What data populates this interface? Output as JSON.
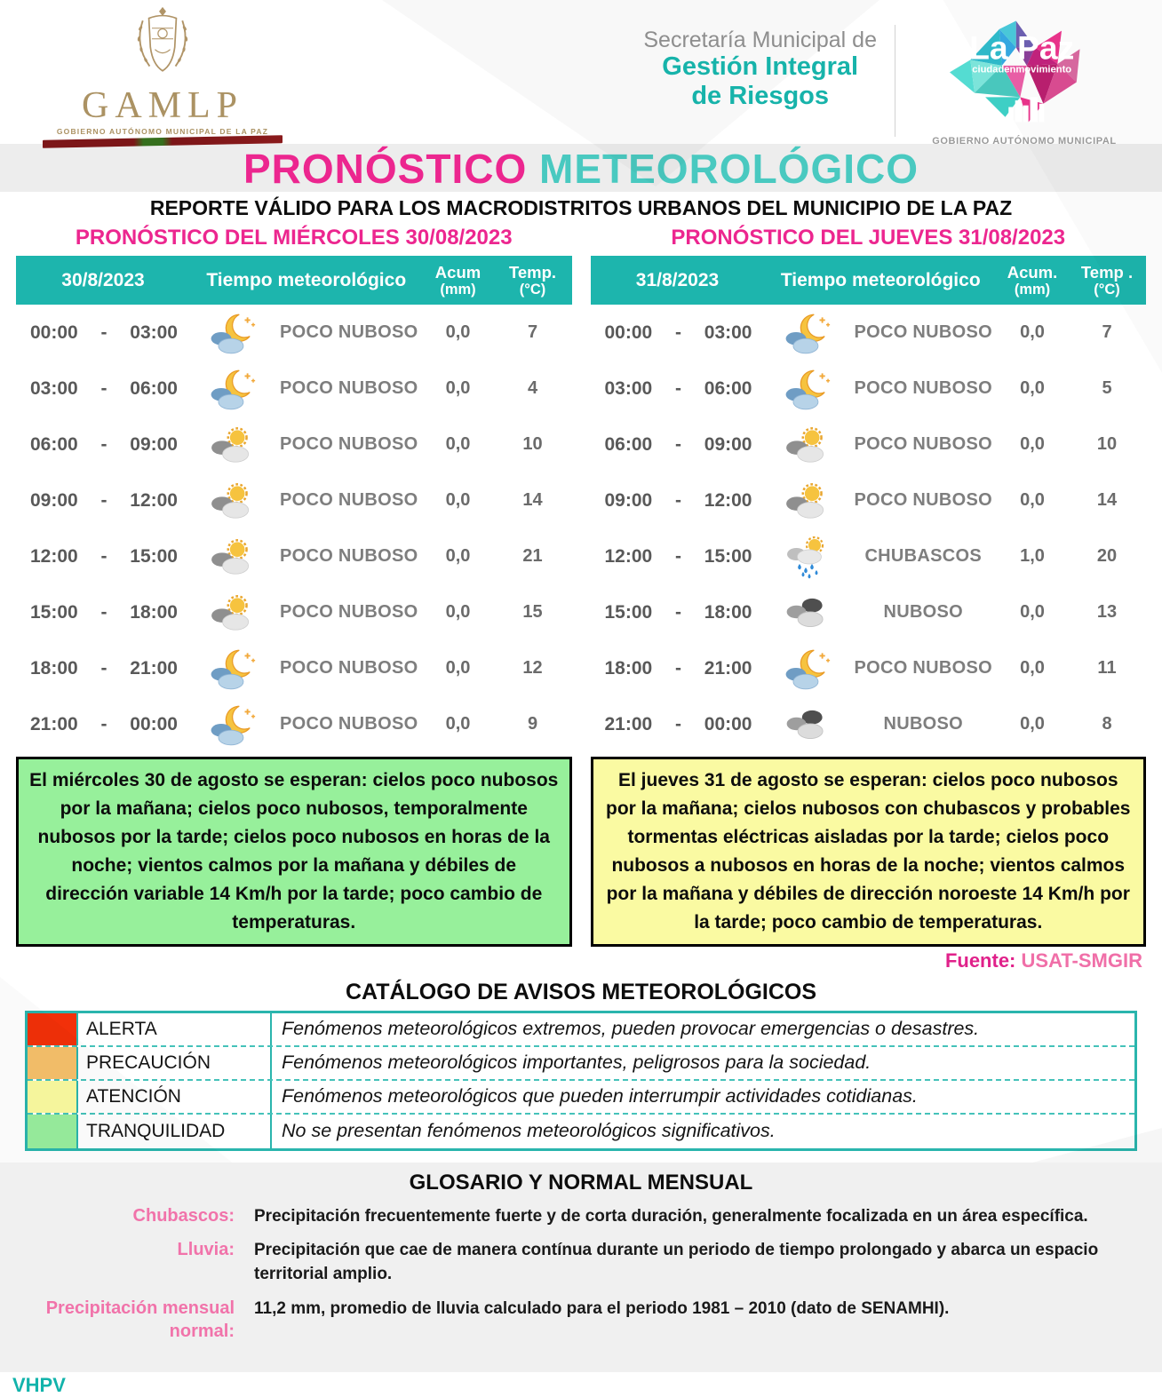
{
  "header": {
    "gamlp": {
      "acronym": "GAMLP",
      "subtitle": "GOBIERNO AUTÓNOMO MUNICIPAL DE LA PAZ"
    },
    "secretaria": {
      "line1": "Secretaría Municipal de",
      "line2": "Gestión Integral",
      "line3": "de Riesgos"
    },
    "lapaz": {
      "title": "La Paz",
      "subtitle": "ciudadenmovimiento",
      "footer": "GOBIERNO AUTÓNOMO MUNICIPAL"
    }
  },
  "title": {
    "part1": "PRONÓSTICO",
    "part2": "METEOROLÓGICO"
  },
  "subtitle": "REPORTE VÁLIDO PARA LOS MACRODISTRITOS URBANOS DEL MUNICIPIO DE LA PAZ",
  "colors": {
    "accent_pink": "#ec268f",
    "accent_teal": "#49c9c0",
    "table_header_teal": "#1db5ad",
    "catalog_border_teal": "#2ab5ad",
    "gold": "#ab9263",
    "summary_green": "#97f09b",
    "summary_yellow": "#fafaa2",
    "fuente_magenta": "#e0218a",
    "fuente_pink": "#f06fa8",
    "glossary_term_pink": "#f173aa",
    "initials_teal": "#12b3ab"
  },
  "forecasts": [
    {
      "section_title": "PRONÓSTICO DEL MIÉRCOLES 30/08/2023",
      "columns": {
        "date": "30/8/2023",
        "weather": "Tiempo meteorológico",
        "acum_line1": "Acum",
        "acum_line2": "(mm)",
        "temp_line1": "Temp.",
        "temp_line2": "(°C)"
      },
      "rows": [
        {
          "from": "00:00",
          "sep": "-",
          "to": "03:00",
          "icon": "moon-clouds",
          "condition": "POCO NUBOSO",
          "acum": "0,0",
          "temp": "7"
        },
        {
          "from": "03:00",
          "sep": "-",
          "to": "06:00",
          "icon": "moon-clouds",
          "condition": "POCO NUBOSO",
          "acum": "0,0",
          "temp": "4"
        },
        {
          "from": "06:00",
          "sep": "-",
          "to": "09:00",
          "icon": "sun-clouds",
          "condition": "POCO NUBOSO",
          "acum": "0,0",
          "temp": "10"
        },
        {
          "from": "09:00",
          "sep": "-",
          "to": "12:00",
          "icon": "sun-clouds",
          "condition": "POCO NUBOSO",
          "acum": "0,0",
          "temp": "14"
        },
        {
          "from": "12:00",
          "sep": "-",
          "to": "15:00",
          "icon": "sun-clouds",
          "condition": "POCO NUBOSO",
          "acum": "0,0",
          "temp": "21"
        },
        {
          "from": "15:00",
          "sep": "-",
          "to": "18:00",
          "icon": "sun-clouds",
          "condition": "POCO NUBOSO",
          "acum": "0,0",
          "temp": "15"
        },
        {
          "from": "18:00",
          "sep": "-",
          "to": "21:00",
          "icon": "moon-clouds",
          "condition": "POCO NUBOSO",
          "acum": "0,0",
          "temp": "12"
        },
        {
          "from": "21:00",
          "sep": "-",
          "to": "00:00",
          "icon": "moon-clouds",
          "condition": "POCO NUBOSO",
          "acum": "0,0",
          "temp": "9"
        }
      ]
    },
    {
      "section_title": "PRONÓSTICO DEL JUEVES 31/08/2023",
      "columns": {
        "date": "31/8/2023",
        "weather": "Tiempo  meteorológico",
        "acum_line1": "Acum.",
        "acum_line2": "(mm)",
        "temp_line1": "Temp .",
        "temp_line2": "(°C)"
      },
      "rows": [
        {
          "from": "00:00",
          "sep": "-",
          "to": "03:00",
          "icon": "moon-clouds",
          "condition": "POCO NUBOSO",
          "acum": "0,0",
          "temp": "7"
        },
        {
          "from": "03:00",
          "sep": "-",
          "to": "06:00",
          "icon": "moon-clouds",
          "condition": "POCO NUBOSO",
          "acum": "0,0",
          "temp": "5"
        },
        {
          "from": "06:00",
          "sep": "-",
          "to": "09:00",
          "icon": "sun-clouds",
          "condition": "POCO NUBOSO",
          "acum": "0,0",
          "temp": "10"
        },
        {
          "from": "09:00",
          "sep": "-",
          "to": "12:00",
          "icon": "sun-clouds",
          "condition": "POCO NUBOSO",
          "acum": "0,0",
          "temp": "14"
        },
        {
          "from": "12:00",
          "sep": "-",
          "to": "15:00",
          "icon": "sun-rain",
          "condition": "CHUBASCOS",
          "acum": "1,0",
          "temp": "20"
        },
        {
          "from": "15:00",
          "sep": "-",
          "to": "18:00",
          "icon": "dark-clouds",
          "condition": "NUBOSO",
          "acum": "0,0",
          "temp": "13"
        },
        {
          "from": "18:00",
          "sep": "-",
          "to": "21:00",
          "icon": "moon-clouds",
          "condition": "POCO NUBOSO",
          "acum": "0,0",
          "temp": "11"
        },
        {
          "from": "21:00",
          "sep": "-",
          "to": "00:00",
          "icon": "dark-clouds",
          "condition": "NUBOSO",
          "acum": "0,0",
          "temp": "8"
        }
      ]
    }
  ],
  "summaries": [
    {
      "style": "green",
      "text": "El miércoles 30 de agosto se esperan:  cielos poco nubosos por la mañana; cielos poco nubosos, temporalmente nubosos por la tarde; cielos poco nubosos en horas de la noche; vientos calmos por la mañana y débiles de dirección variable 14 Km/h por la tarde; poco cambio de temperaturas."
    },
    {
      "style": "yellow",
      "text": "El jueves 31 de agosto se esperan:  cielos poco nubosos por la mañana; cielos nubosos con chubascos y probables tormentas eléctricas aisladas por la tarde; cielos poco nubosos a nubosos en horas de la noche; vientos calmos por la mañana y débiles de dirección noroeste 14 Km/h por la tarde; poco cambio de temperaturas."
    }
  ],
  "fuente": {
    "label": "Fuente:",
    "value": "USAT-SMGIR"
  },
  "catalog": {
    "title": "CATÁLOGO DE AVISOS METEOROLÓGICOS",
    "rows": [
      {
        "level": "ALERTA",
        "color": "#f23009",
        "description": "Fenómenos meteorológicos extremos, pueden provocar emergencias o desastres."
      },
      {
        "level": "PRECAUCIÓN",
        "color": "#f6c06b",
        "description": "Fenómenos meteorológicos importantes, peligrosos para la sociedad."
      },
      {
        "level": "ATENCIÓN",
        "color": "#fafaa0",
        "description": "Fenómenos meteorológicos que pueden interrumpir actividades cotidianas."
      },
      {
        "level": "TRANQUILIDAD",
        "color": "#98ee9e",
        "description": "No se presentan fenómenos meteorológicos significativos."
      }
    ]
  },
  "glossary": {
    "title": "GLOSARIO Y NORMAL MENSUAL",
    "entries": [
      {
        "term": "Chubascos:",
        "definition": "Precipitación frecuentemente fuerte y de corta duración, generalmente focalizada en un área específica."
      },
      {
        "term": "Lluvia:",
        "definition": "Precipitación que cae de manera contínua durante un periodo de tiempo prolongado y abarca un espacio territorial amplio."
      },
      {
        "term": "Precipitación mensual normal:",
        "definition": "11,2 mm, promedio de lluvia calculado para el periodo 1981 – 2010 (dato de SENAMHI)."
      }
    ]
  },
  "footer": {
    "initials": "VHPV"
  }
}
